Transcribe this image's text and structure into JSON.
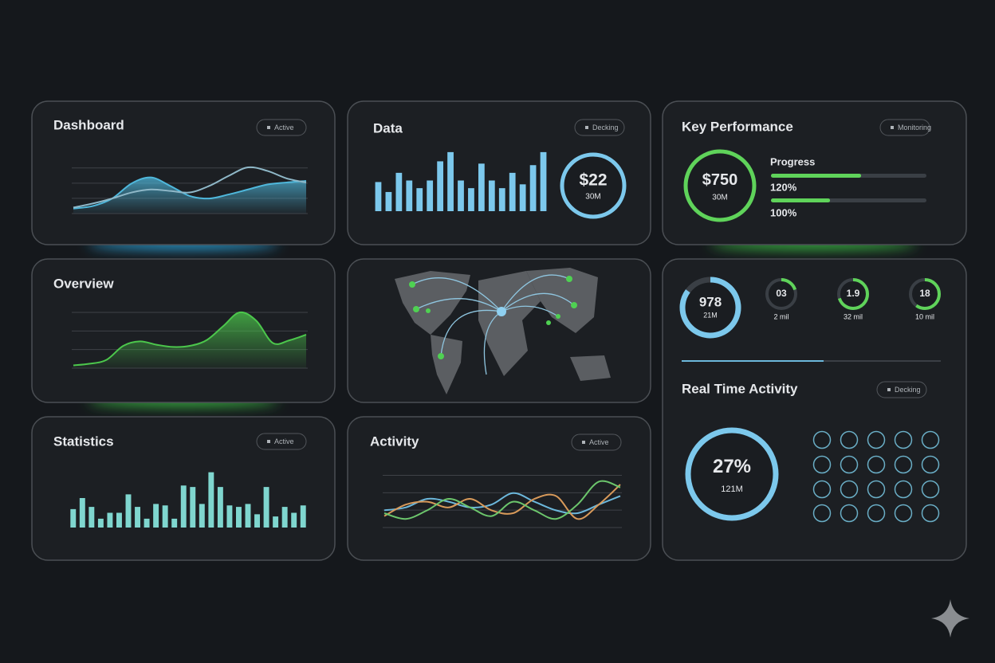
{
  "dashboard": {
    "title": "Dashboard",
    "badge": "Active",
    "chart": {
      "type": "area",
      "ylim": [
        0,
        100
      ],
      "series": [
        {
          "color": "#4fb8dc",
          "fill": true,
          "values": [
            10,
            15,
            30,
            60,
            72,
            55,
            35,
            30,
            38,
            48,
            58,
            62,
            65
          ]
        },
        {
          "color": "#8fb8c8",
          "fill": false,
          "values": [
            12,
            20,
            30,
            42,
            48,
            45,
            42,
            55,
            75,
            92,
            85,
            70,
            62
          ]
        }
      ]
    }
  },
  "data_panel": {
    "title": "Data",
    "badge": "Decking",
    "ring_value": "$22",
    "ring_sub": "30M",
    "chart": {
      "type": "bar",
      "ylim": [
        0,
        80
      ],
      "series": [
        {
          "color": "#7cc8ec",
          "values": [
            38,
            25,
            50,
            40,
            30,
            40,
            65,
            77,
            40,
            30,
            62,
            40,
            30,
            50,
            35,
            60,
            77
          ]
        }
      ]
    }
  },
  "key_performance": {
    "title": "Key Performance",
    "badge": "Monitoring",
    "ring_value": "$750",
    "ring_sub": "30M",
    "labels": [
      "Progress",
      "120%",
      "100%"
    ],
    "bars": [
      58,
      38
    ],
    "bar_color": "#5fd35a"
  },
  "overview": {
    "title": "Overview",
    "chart": {
      "type": "area",
      "ylim": [
        0,
        110
      ],
      "series": [
        {
          "color": "#4cc74c",
          "fill": true,
          "values": [
            5,
            8,
            15,
            40,
            48,
            42,
            38,
            40,
            50,
            75,
            100,
            85,
            45,
            50,
            60
          ]
        }
      ]
    }
  },
  "gauges": [
    {
      "value": "978",
      "sub": "21M",
      "fill": 85,
      "color": "#7cc8ec"
    },
    {
      "value": "03",
      "sub": "2 mil",
      "fill": 20,
      "color": "#5fd35a"
    },
    {
      "value": "1.9",
      "sub": "32 mil",
      "fill": 70,
      "color": "#5fd35a"
    },
    {
      "value": "18",
      "sub": "10 mil",
      "fill": 60,
      "color": "#5fd35a"
    }
  ],
  "realtime": {
    "title": "Real Time Activity",
    "badge": "Decking",
    "ring_value": "27%",
    "ring_sub": "121M"
  },
  "statistics": {
    "title": "Statistics",
    "badge": "Active",
    "chart": {
      "type": "bar",
      "ylim": [
        0,
        80
      ],
      "series": [
        {
          "color": "#7fd6cf",
          "values": [
            25,
            40,
            28,
            12,
            20,
            20,
            45,
            28,
            12,
            32,
            30,
            12,
            57,
            55,
            32,
            75,
            55,
            30,
            28,
            32,
            18,
            55,
            15,
            28,
            20,
            30
          ]
        }
      ]
    }
  },
  "activity": {
    "title": "Activity",
    "badge": "Active",
    "chart": {
      "type": "line",
      "ylim": [
        0,
        100
      ],
      "series": [
        {
          "color": "#6cb8dc",
          "values": [
            30,
            35,
            50,
            45,
            35,
            40,
            60,
            45,
            30,
            25,
            40,
            55
          ]
        },
        {
          "color": "#d89a5a",
          "values": [
            20,
            40,
            45,
            35,
            50,
            30,
            25,
            50,
            55,
            15,
            40,
            75
          ]
        },
        {
          "color": "#6cc66c",
          "values": [
            25,
            15,
            30,
            50,
            35,
            20,
            45,
            30,
            15,
            40,
            80,
            70
          ]
        }
      ]
    }
  }
}
